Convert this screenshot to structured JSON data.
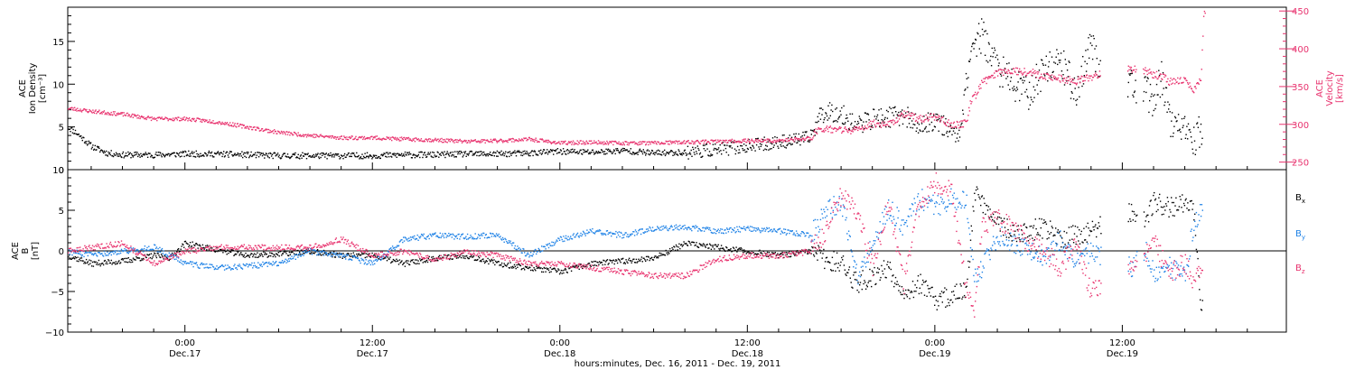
{
  "colors": {
    "black": "#000000",
    "red": "#e8326e",
    "blue": "#1e82e6"
  },
  "x_axis": {
    "label": "hours:minutes, Dec. 16, 2011 - Dec. 19, 2011",
    "range_hours": [
      16.5,
      94.5
    ],
    "ticks": [
      {
        "t": 24,
        "time": "0:00",
        "date": "Dec.17"
      },
      {
        "t": 36,
        "time": "12:00",
        "date": "Dec.17"
      },
      {
        "t": 48,
        "time": "0:00",
        "date": "Dec.18"
      },
      {
        "t": 60,
        "time": "12:00",
        "date": "Dec.18"
      },
      {
        "t": 72,
        "time": "0:00",
        "date": "Dec.19"
      },
      {
        "t": 84,
        "time": "12:00",
        "date": "Dec.19"
      }
    ]
  },
  "top_panel": {
    "left_label": [
      "ACE",
      "Ion Density",
      "[cm⁻³]"
    ],
    "right_label": [
      "ACE",
      "Velocity",
      "[km/s]"
    ],
    "left_ticks": [
      "0",
      "5",
      "10",
      "15"
    ],
    "right_ticks": [
      "250",
      "300",
      "350",
      "400",
      "450"
    ]
  },
  "bottom_panel": {
    "left_label": [
      "ACE",
      "B",
      "[nT]"
    ],
    "ticks": [
      "−10",
      "−5",
      "0",
      "5",
      "10"
    ],
    "legend": [
      {
        "main": "B",
        "sub": "x",
        "color_key": "black"
      },
      {
        "main": "B",
        "sub": "y",
        "color_key": "blue"
      },
      {
        "main": "B",
        "sub": "z",
        "color_key": "red"
      }
    ]
  },
  "chart_data": [
    {
      "type": "scatter",
      "x_unit": "hours since Dec. 16, 2011 00:00",
      "y_left_label": "ACE Ion Density [cm⁻³]",
      "y_right_label": "ACE Velocity [km/s]",
      "y_left_lim": [
        0,
        19
      ],
      "y_right_lim": [
        240,
        455
      ],
      "series": [
        {
          "axis": "left",
          "color_key": "black",
          "x": [
            16.5,
            17,
            18,
            19,
            20,
            22,
            24,
            26,
            28,
            30,
            32,
            34,
            36,
            38,
            40,
            42,
            44,
            46,
            48,
            50,
            52,
            54,
            56,
            58,
            60,
            62,
            64,
            64.5,
            65,
            66,
            67,
            68,
            69,
            70,
            71,
            72,
            73,
            73.5,
            74.3,
            75,
            76,
            77,
            78,
            79,
            80,
            81,
            82,
            82.5,
            85.5,
            86,
            86.5,
            87,
            88,
            88.5,
            89
          ],
          "y": [
            5,
            4.4,
            2.8,
            2.0,
            1.8,
            1.8,
            1.9,
            1.9,
            1.8,
            1.7,
            1.7,
            1.7,
            1.7,
            1.8,
            1.8,
            1.9,
            1.9,
            2.0,
            2.2,
            2.1,
            2.3,
            2.0,
            2.1,
            2.4,
            2.8,
            3.3,
            3.8,
            6,
            7.0,
            6.5,
            5.3,
            6.0,
            6.2,
            6.5,
            5.0,
            6.0,
            4.5,
            4.0,
            14.5,
            15.8,
            12,
            10,
            9,
            12,
            13,
            9,
            15,
            12,
            9,
            8,
            11,
            6,
            4.2,
            3.0,
            5
          ]
        },
        {
          "axis": "right",
          "color_key": "red",
          "x": [
            16.5,
            18,
            20,
            22,
            24,
            26,
            28,
            30,
            32,
            34,
            36,
            38,
            40,
            42,
            44,
            46,
            48,
            50,
            52,
            54,
            56,
            58,
            60,
            62,
            64,
            64.5,
            65,
            66,
            67,
            68,
            69,
            70,
            71,
            72,
            73,
            74,
            74.3,
            74.6,
            75,
            76,
            77,
            78,
            79,
            80,
            81,
            82,
            82.5,
            84.5,
            85.5,
            86,
            86.5,
            87,
            88,
            88.5,
            89,
            89.2
          ],
          "y": [
            322,
            318,
            314,
            308,
            308,
            304,
            297,
            290,
            286,
            283,
            283,
            281,
            280,
            278,
            279,
            281,
            276,
            277,
            276,
            276,
            277,
            278,
            279,
            279,
            282,
            295,
            295,
            293,
            293,
            302,
            301,
            314,
            308,
            311,
            300,
            302,
            335,
            340,
            356,
            370,
            372,
            370,
            365,
            361,
            358,
            363,
            368,
            375,
            371,
            366,
            365,
            357,
            360,
            345,
            360,
            450
          ]
        }
      ]
    },
    {
      "type": "scatter",
      "x_unit": "hours since Dec. 16, 2011 00:00",
      "y_label": "ACE B [nT]",
      "y_lim": [
        -10,
        10
      ],
      "series": [
        {
          "name": "Bx",
          "color_key": "black",
          "x": [
            16.5,
            18,
            20,
            22,
            23,
            24,
            26,
            28,
            30,
            32,
            34,
            36,
            38,
            40,
            42,
            44,
            46,
            48,
            50,
            52,
            54,
            56,
            58,
            60,
            62,
            64,
            65,
            66,
            67,
            68,
            69,
            70,
            71,
            72,
            73,
            74,
            74.5,
            75,
            76,
            77,
            78,
            79,
            80,
            81,
            82,
            84.5,
            85.5,
            86,
            87,
            88,
            88.5,
            89
          ],
          "y": [
            -0.5,
            -1.5,
            -1.2,
            -0.5,
            -0.8,
            1.0,
            0.2,
            -0.5,
            -0.3,
            0.0,
            -0.5,
            -0.5,
            -1.5,
            -0.8,
            -0.5,
            -1.5,
            -2.0,
            -2.5,
            -1.5,
            -1.2,
            -0.8,
            1.0,
            0.5,
            0.0,
            -0.5,
            0.0,
            -1.0,
            -1.5,
            -4.0,
            -3.0,
            -2.0,
            -5.0,
            -4.0,
            -6.0,
            -5.5,
            -5.0,
            7.5,
            6.0,
            4.0,
            2.0,
            2.5,
            3.0,
            1.5,
            2.0,
            2.5,
            5.0,
            4.0,
            6.0,
            5.5,
            6.0,
            6.2,
            -6.0
          ]
        },
        {
          "name": "By",
          "color_key": "blue",
          "x": [
            16.5,
            18,
            20,
            22,
            24,
            26,
            28,
            30,
            32,
            34,
            36,
            38,
            40,
            42,
            44,
            46,
            48,
            50,
            52,
            54,
            56,
            58,
            60,
            62,
            64,
            65,
            66,
            67,
            68,
            69,
            70,
            71,
            72,
            73,
            74,
            74.5,
            75,
            76,
            77,
            78,
            79,
            80,
            81,
            82,
            84.5,
            85.5,
            86,
            87,
            88,
            88.5,
            89
          ],
          "y": [
            0.0,
            -0.5,
            0.0,
            0.5,
            -1.5,
            -2.0,
            -1.8,
            -1.5,
            0.0,
            -0.5,
            -1.5,
            1.5,
            2.0,
            1.8,
            2.0,
            -0.5,
            1.5,
            2.5,
            2.0,
            2.8,
            3.0,
            2.5,
            2.8,
            2.5,
            2.0,
            5.0,
            6.0,
            -3.0,
            1.0,
            5.5,
            3.0,
            6.5,
            5.5,
            6.5,
            6.0,
            -3.5,
            -2.0,
            2.0,
            1.0,
            0.5,
            -1.0,
            1.5,
            -1.0,
            0.0,
            -2.0,
            0.0,
            -3.0,
            -2.0,
            -3.0,
            3.0,
            5.0
          ]
        },
        {
          "name": "Bz",
          "color_key": "red",
          "x": [
            16.5,
            18,
            20,
            22,
            24,
            26,
            28,
            30,
            32,
            34,
            36,
            38,
            40,
            42,
            44,
            46,
            48,
            50,
            52,
            54,
            56,
            58,
            60,
            62,
            64,
            65,
            66,
            67,
            68,
            69,
            70,
            71,
            72,
            73,
            74,
            74.5,
            75,
            76,
            77,
            78,
            79,
            80,
            81,
            82,
            84.5,
            85.5,
            86,
            87,
            88,
            88.5,
            89
          ],
          "y": [
            0.0,
            0.5,
            1.0,
            -1.5,
            0.0,
            0.5,
            0.5,
            0.5,
            0.5,
            1.5,
            -0.5,
            0.0,
            -1.0,
            0.0,
            -0.5,
            -1.5,
            -1.5,
            -2.0,
            -2.5,
            -3.0,
            -3.0,
            -1.0,
            -0.5,
            -0.5,
            0.0,
            2.5,
            7.0,
            5.0,
            -2.0,
            6.0,
            -4.0,
            6.0,
            8.5,
            8.0,
            -5.0,
            -8.0,
            3.0,
            4.0,
            3.0,
            1.0,
            0.0,
            -2.0,
            1.0,
            -5.0,
            -1.5,
            -0.5,
            1.0,
            -2.5,
            -1.5,
            -3.5,
            -2.5
          ]
        }
      ]
    }
  ]
}
